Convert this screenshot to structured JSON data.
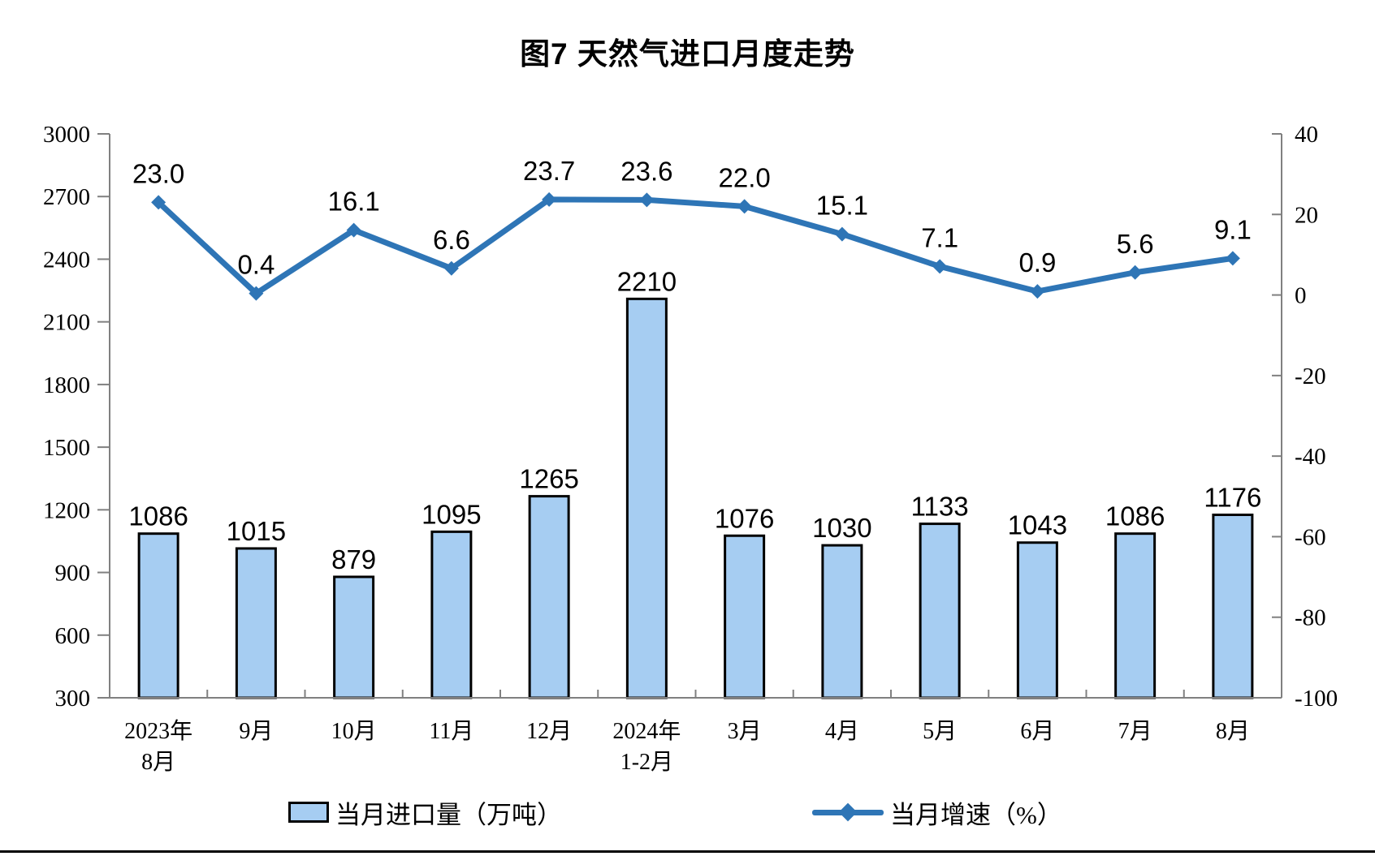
{
  "page": {
    "title": "图7 天然气进口月度走势"
  },
  "colors": {
    "background": "#FFFFFF",
    "bar_fill": "#A6CDF2",
    "bar_border": "#000000",
    "line": "#2E75B6",
    "axis": "#808080",
    "text": "#000000"
  },
  "legend": {
    "bar_label": "当月进口量（万吨）",
    "line_label": "当月增速（%）"
  },
  "chart_data": {
    "type": "combo",
    "title": "图7 天然气进口月度走势",
    "xlabel": "",
    "ylabel_left": "",
    "ylabel_right": "",
    "grid": false,
    "legend_position": "bottom",
    "categories": [
      [
        "2023年",
        "8月"
      ],
      [
        "9月"
      ],
      [
        "10月"
      ],
      [
        "11月"
      ],
      [
        "12月"
      ],
      [
        "2024年",
        "1-2月"
      ],
      [
        "3月"
      ],
      [
        "4月"
      ],
      [
        "5月"
      ],
      [
        "6月"
      ],
      [
        "7月"
      ],
      [
        "8月"
      ]
    ],
    "series": [
      {
        "name": "当月进口量（万吨）",
        "type": "bar",
        "axis": "left",
        "values": [
          1086,
          1015,
          879,
          1095,
          1265,
          2210,
          1076,
          1030,
          1133,
          1043,
          1086,
          1176
        ],
        "labels": [
          "1086",
          "1015",
          "879",
          "1095",
          "1265",
          "2210",
          "1076",
          "1030",
          "1133",
          "1043",
          "1086",
          "1176"
        ]
      },
      {
        "name": "当月增速（%）",
        "type": "line",
        "axis": "right",
        "values": [
          23.0,
          0.4,
          16.1,
          6.6,
          23.7,
          23.6,
          22.0,
          15.1,
          7.1,
          0.9,
          5.6,
          9.1
        ],
        "labels": [
          "23.0",
          "0.4",
          "16.1",
          "6.6",
          "23.7",
          "23.6",
          "22.0",
          "15.1",
          "7.1",
          "0.9",
          "5.6",
          "9.1"
        ]
      }
    ],
    "left_axis": {
      "min": 300,
      "max": 3000,
      "step": 300,
      "ticks": [
        300,
        600,
        900,
        1200,
        1500,
        1800,
        2100,
        2400,
        2700,
        3000
      ]
    },
    "right_axis": {
      "min": -100,
      "max": 40,
      "step": 20,
      "ticks": [
        40,
        20,
        0,
        -20,
        -40,
        -60,
        -80,
        -100
      ]
    }
  }
}
